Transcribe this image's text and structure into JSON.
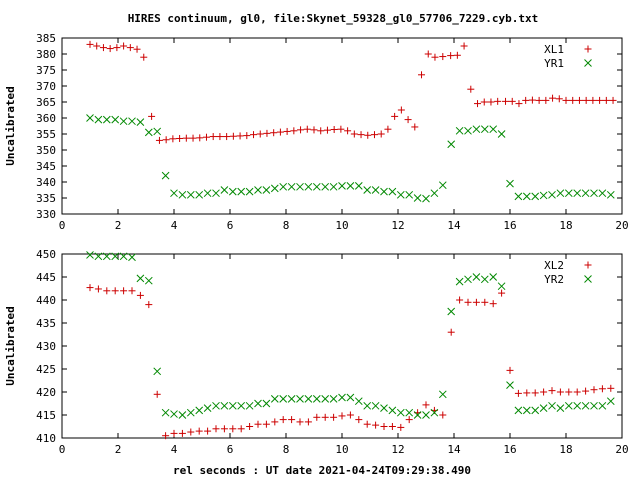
{
  "title": "HIRES continuum, gl0, file:Skynet_59328_gl0_57706_7229.cyb.txt",
  "colors": {
    "red": "#cc0000",
    "green": "#008800"
  },
  "chart_data": [
    {
      "type": "scatter",
      "ylabel": "Uncalibrated",
      "xlabel": "",
      "xlim": [
        0,
        20
      ],
      "ylim": [
        330,
        385
      ],
      "xticks": [
        0,
        2,
        4,
        6,
        8,
        10,
        12,
        14,
        16,
        18,
        20
      ],
      "yticks": [
        330,
        335,
        340,
        345,
        350,
        355,
        360,
        365,
        370,
        375,
        380,
        385
      ],
      "legend_position": "top-right",
      "series": [
        {
          "name": "XL1",
          "marker": "plus",
          "color": "#cc0000",
          "x": [
            1.0,
            1.24,
            1.48,
            1.72,
            1.96,
            2.2,
            2.44,
            2.68,
            2.92,
            3.2,
            3.48,
            3.72,
            3.96,
            4.2,
            4.44,
            4.68,
            4.92,
            5.16,
            5.4,
            5.64,
            5.88,
            6.12,
            6.36,
            6.6,
            6.84,
            7.08,
            7.32,
            7.56,
            7.8,
            8.04,
            8.28,
            8.52,
            8.76,
            9.0,
            9.24,
            9.48,
            9.72,
            9.96,
            10.2,
            10.44,
            10.68,
            10.92,
            11.16,
            11.4,
            11.64,
            11.88,
            12.12,
            12.36,
            12.6,
            12.84,
            13.08,
            13.32,
            13.6,
            13.88,
            14.12,
            14.36,
            14.6,
            14.84,
            15.08,
            15.32,
            15.56,
            15.84,
            16.08,
            16.32,
            16.56,
            16.8,
            17.04,
            17.28,
            17.52,
            17.76,
            18.0,
            18.24,
            18.48,
            18.72,
            18.96,
            19.2,
            19.44,
            19.68
          ],
          "y": [
            383,
            382.5,
            382,
            381.7,
            382,
            382.5,
            382,
            381.5,
            379,
            360.5,
            353,
            353.2,
            353.5,
            353.6,
            353.7,
            353.7,
            353.8,
            354,
            354.2,
            354.2,
            354.2,
            354.3,
            354.4,
            354.5,
            354.8,
            355,
            355.2,
            355.4,
            355.6,
            355.8,
            356,
            356.3,
            356.5,
            356.3,
            356,
            356.2,
            356.4,
            356.5,
            356,
            355,
            354.8,
            354.6,
            354.8,
            355,
            356.5,
            360.5,
            362.5,
            359.5,
            357.2,
            373.5,
            380,
            379,
            379.2,
            379.5,
            379.6,
            382.5,
            369,
            364.5,
            365,
            365,
            365.2,
            365.2,
            365.2,
            364.5,
            365.5,
            365.6,
            365.5,
            365.5,
            366.2,
            366,
            365.5,
            365.5,
            365.5,
            365.5,
            365.5,
            365.5,
            365.5,
            365.5
          ]
        },
        {
          "name": "YR1",
          "marker": "cross",
          "color": "#008800",
          "x": [
            1.0,
            1.3,
            1.6,
            1.9,
            2.2,
            2.5,
            2.8,
            3.1,
            3.4,
            3.7,
            4.0,
            4.3,
            4.6,
            4.9,
            5.2,
            5.5,
            5.8,
            6.1,
            6.4,
            6.7,
            7.0,
            7.3,
            7.6,
            7.9,
            8.2,
            8.5,
            8.8,
            9.1,
            9.4,
            9.7,
            10.0,
            10.3,
            10.6,
            10.9,
            11.2,
            11.5,
            11.8,
            12.1,
            12.4,
            12.7,
            13.0,
            13.3,
            13.6,
            13.9,
            14.2,
            14.5,
            14.8,
            15.1,
            15.4,
            15.7,
            16.0,
            16.3,
            16.6,
            16.9,
            17.2,
            17.5,
            17.8,
            18.1,
            18.4,
            18.7,
            19.0,
            19.3,
            19.6
          ],
          "y": [
            360,
            359.5,
            359.5,
            359.5,
            359,
            359,
            358.7,
            355.5,
            355.8,
            342,
            336.5,
            336,
            336,
            336,
            336.5,
            336.5,
            337.5,
            337,
            337,
            337,
            337.5,
            337.5,
            338,
            338.5,
            338.5,
            338.5,
            338.5,
            338.5,
            338.5,
            338.5,
            338.8,
            338.8,
            338.8,
            337.5,
            337.5,
            337,
            337,
            336,
            336,
            335,
            334.8,
            336.5,
            339,
            351.8,
            356,
            356,
            356.5,
            356.5,
            356.5,
            355,
            339.5,
            335.5,
            335.5,
            335.5,
            335.8,
            336,
            336.5,
            336.5,
            336.5,
            336.5,
            336.5,
            336.5,
            336
          ]
        }
      ]
    },
    {
      "type": "scatter",
      "ylabel": "Uncalibrated",
      "xlabel": "rel seconds : UT date 2021-04-24T09:29:38.490",
      "xlim": [
        0,
        20
      ],
      "ylim": [
        410,
        450
      ],
      "xticks": [
        0,
        2,
        4,
        6,
        8,
        10,
        12,
        14,
        16,
        18,
        20
      ],
      "yticks": [
        410,
        415,
        420,
        425,
        430,
        435,
        440,
        445,
        450
      ],
      "legend_position": "top-right",
      "series": [
        {
          "name": "XL2",
          "marker": "plus",
          "color": "#cc0000",
          "x": [
            1.0,
            1.3,
            1.6,
            1.9,
            2.2,
            2.5,
            2.8,
            3.1,
            3.4,
            3.7,
            4.0,
            4.3,
            4.6,
            4.9,
            5.2,
            5.5,
            5.8,
            6.1,
            6.4,
            6.7,
            7.0,
            7.3,
            7.6,
            7.9,
            8.2,
            8.5,
            8.8,
            9.1,
            9.4,
            9.7,
            10.0,
            10.3,
            10.6,
            10.9,
            11.2,
            11.5,
            11.8,
            12.1,
            12.4,
            12.7,
            13.0,
            13.3,
            13.6,
            13.9,
            14.2,
            14.5,
            14.8,
            15.1,
            15.4,
            15.7,
            16.0,
            16.3,
            16.6,
            16.9,
            17.2,
            17.5,
            17.8,
            18.1,
            18.4,
            18.7,
            19.0,
            19.3,
            19.6
          ],
          "y": [
            442.7,
            442.4,
            442,
            442,
            442,
            442,
            441,
            439,
            419.5,
            410.5,
            411,
            411,
            411.3,
            411.5,
            411.5,
            412,
            412,
            412,
            412,
            412.5,
            413,
            413,
            413.5,
            414,
            414,
            413.5,
            413.5,
            414.5,
            414.5,
            414.5,
            414.8,
            415,
            414,
            413,
            412.8,
            412.5,
            412.5,
            412.3,
            414,
            415.5,
            417.2,
            416,
            415,
            433,
            440,
            439.5,
            439.5,
            439.5,
            439.2,
            441.5,
            424.7,
            419.7,
            419.8,
            419.8,
            420,
            420.3,
            420,
            420,
            420,
            420.2,
            420.5,
            420.7,
            420.8
          ]
        },
        {
          "name": "YR2",
          "marker": "cross",
          "color": "#008800",
          "x": [
            1.0,
            1.3,
            1.6,
            1.9,
            2.2,
            2.5,
            2.8,
            3.1,
            3.4,
            3.7,
            4.0,
            4.3,
            4.6,
            4.9,
            5.2,
            5.5,
            5.8,
            6.1,
            6.4,
            6.7,
            7.0,
            7.3,
            7.6,
            7.9,
            8.2,
            8.5,
            8.8,
            9.1,
            9.4,
            9.7,
            10.0,
            10.3,
            10.6,
            10.9,
            11.2,
            11.5,
            11.8,
            12.1,
            12.4,
            12.7,
            13.0,
            13.3,
            13.6,
            13.9,
            14.2,
            14.5,
            14.8,
            15.1,
            15.4,
            15.7,
            16.0,
            16.3,
            16.6,
            16.9,
            17.2,
            17.5,
            17.8,
            18.1,
            18.4,
            18.7,
            19.0,
            19.3,
            19.6
          ],
          "y": [
            449.8,
            449.5,
            449.5,
            449.5,
            449.5,
            449.3,
            444.7,
            444.2,
            424.5,
            415.5,
            415.2,
            415,
            415.5,
            416,
            416.5,
            417,
            417,
            417,
            417,
            417,
            417.5,
            417.5,
            418.5,
            418.5,
            418.5,
            418.5,
            418.5,
            418.5,
            418.5,
            418.5,
            418.8,
            418.8,
            418,
            417,
            417,
            416.5,
            416,
            415.5,
            415.5,
            415,
            415,
            415.5,
            419.5,
            437.5,
            444,
            444.5,
            445,
            444.5,
            445,
            443,
            421.5,
            416,
            416,
            416,
            416.5,
            417,
            416.5,
            417,
            417,
            417,
            417,
            417,
            418
          ]
        }
      ]
    }
  ]
}
